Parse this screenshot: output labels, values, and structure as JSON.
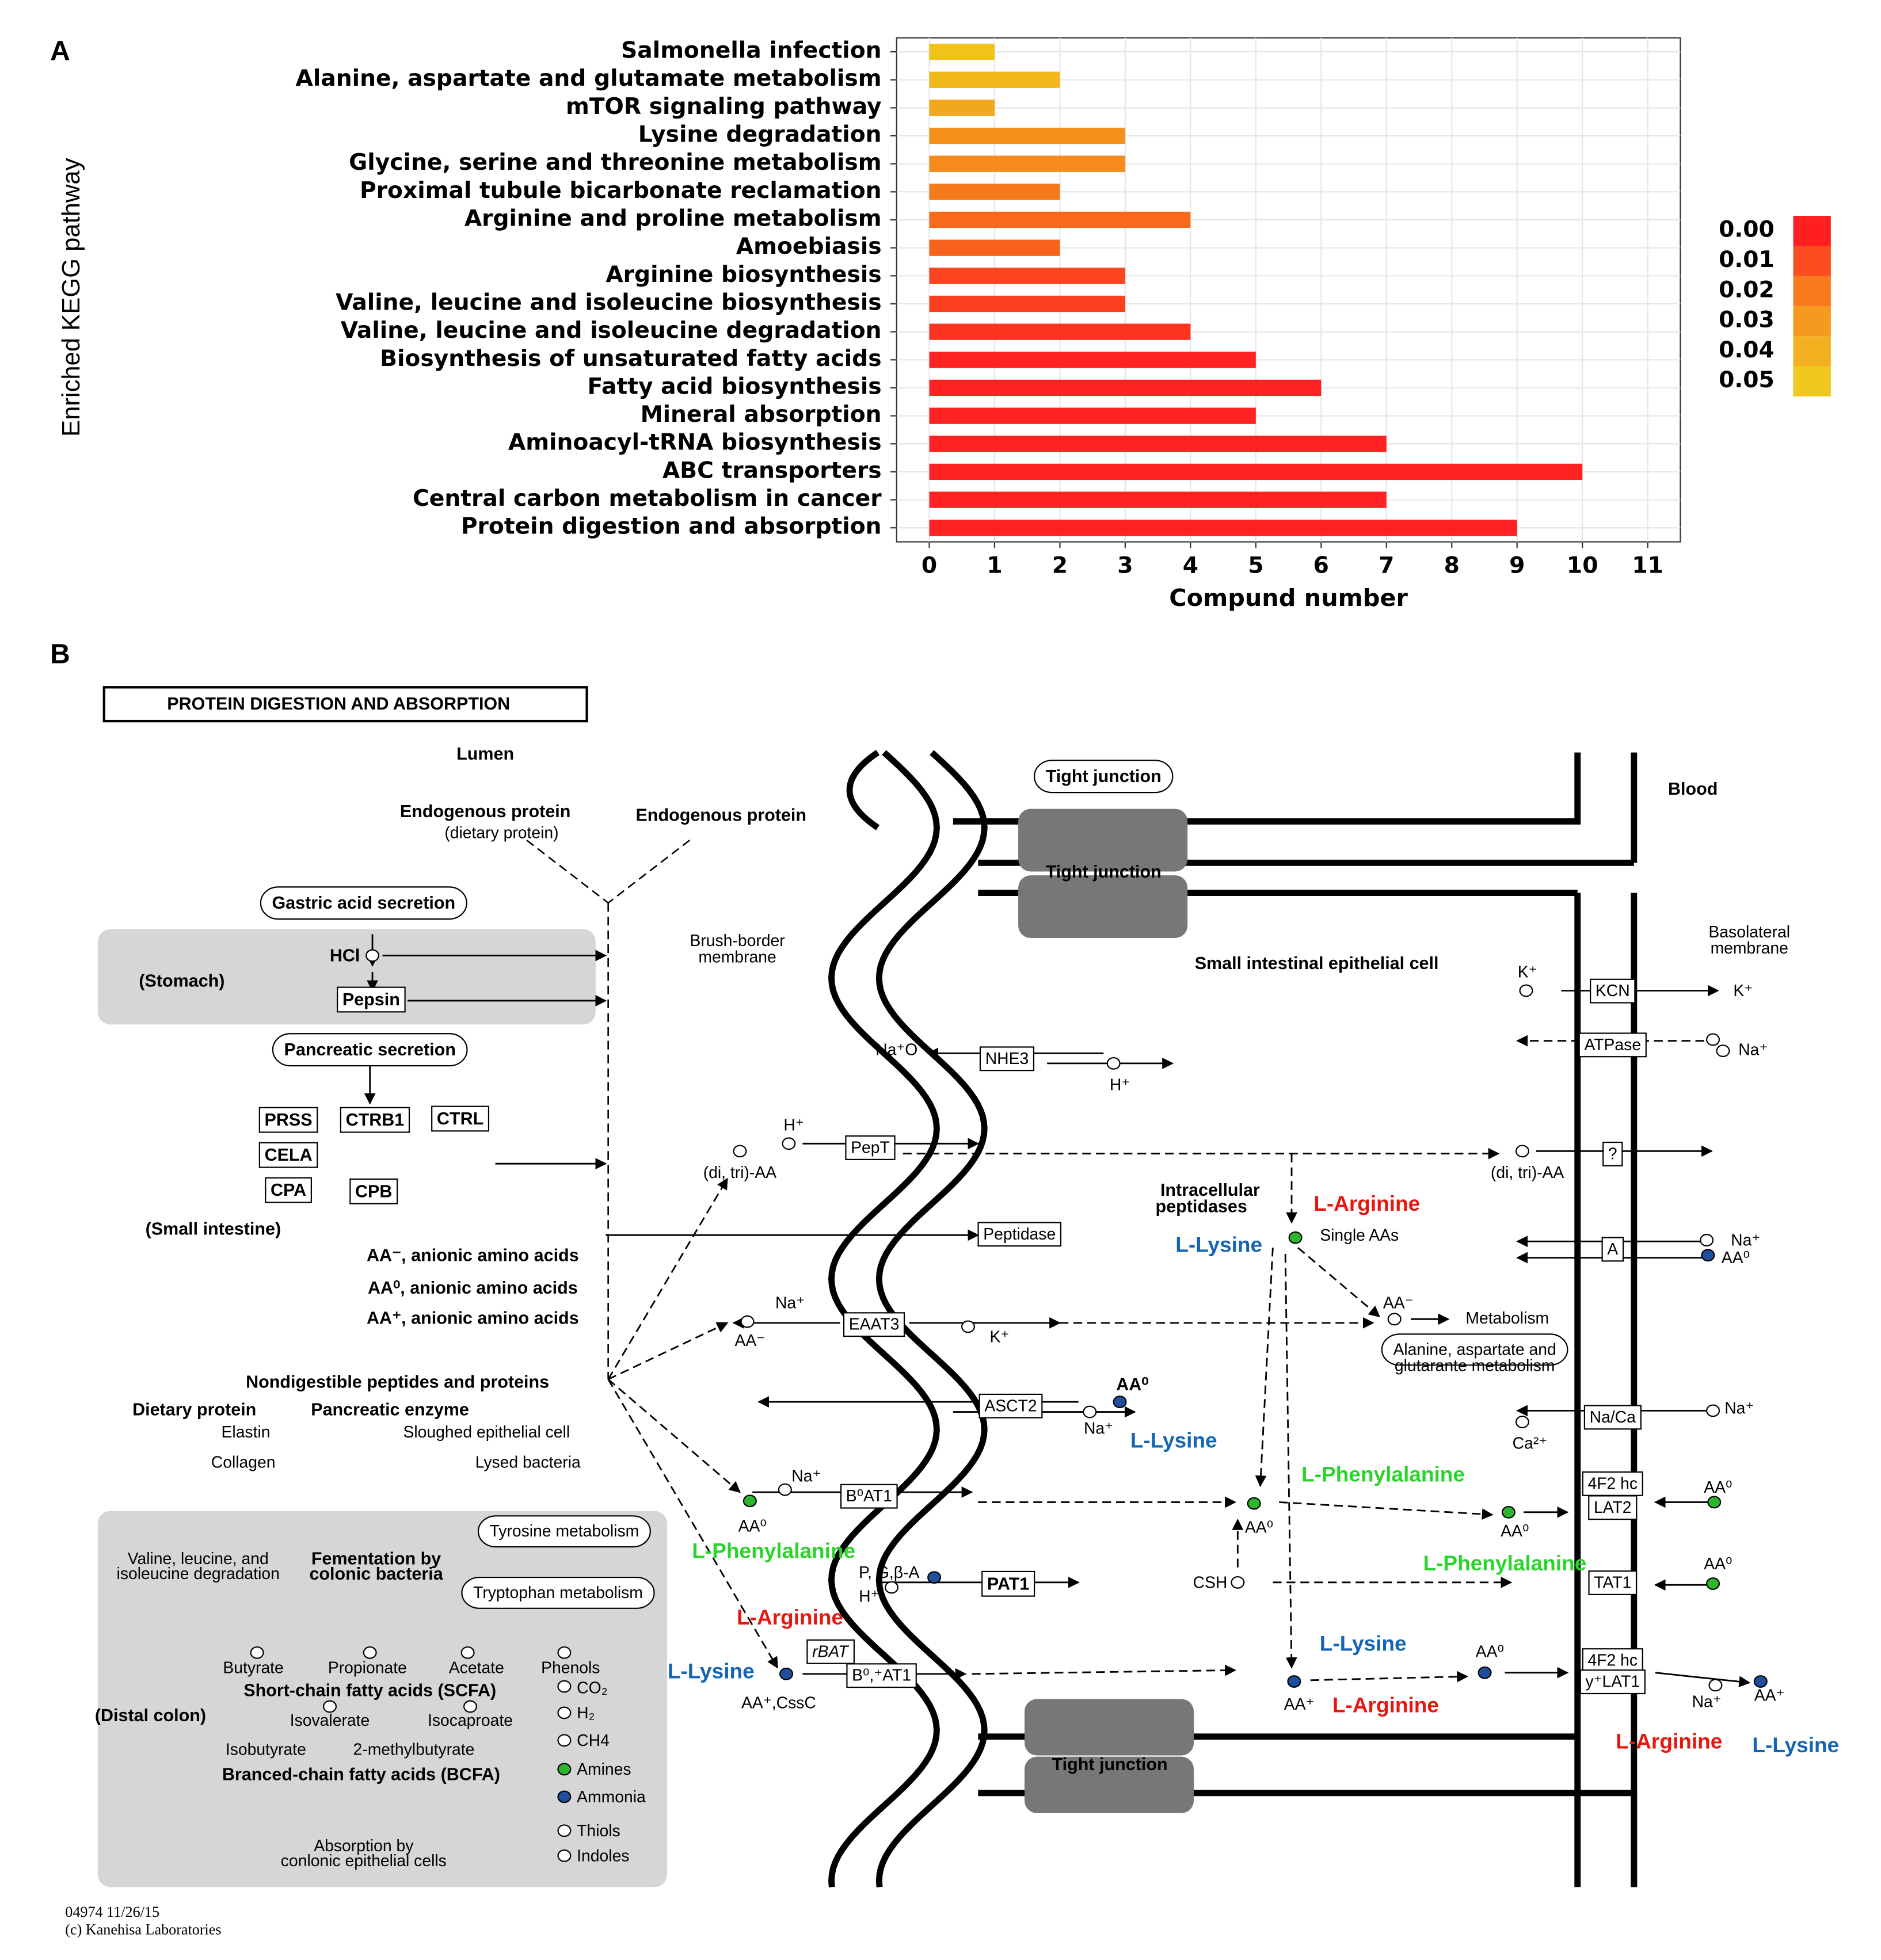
{
  "chart_data": {
    "type": "bar",
    "orientation": "horizontal",
    "panel_label": "A",
    "categories": [
      "Salmonella infection",
      "Alanine, aspartate and glutamate metabolism",
      "mTOR signaling pathway",
      "Lysine degradation",
      "Glycine, serine and threonine metabolism",
      "Proximal tubule bicarbonate reclamation",
      "Arginine and proline metabolism",
      "Amoebiasis",
      "Arginine biosynthesis",
      "Valine, leucine and isoleucine biosynthesis",
      "Valine, leucine and isoleucine degradation",
      "Biosynthesis of unsaturated fatty acids",
      "Fatty acid biosynthesis",
      "Mineral absorption",
      "Aminoacyl-tRNA biosynthesis",
      "ABC transporters",
      "Central carbon metabolism in cancer",
      "Protein digestion and absorption"
    ],
    "values": [
      1,
      2,
      1,
      3,
      3,
      2,
      4,
      2,
      3,
      3,
      4,
      5,
      6,
      5,
      7,
      10,
      7,
      9
    ],
    "colors": [
      "#f0c21c",
      "#f1b81c",
      "#f2a81c",
      "#f68f1a",
      "#f68a1a",
      "#f77a1a",
      "#f86a1a",
      "#f8621a",
      "#fb4420",
      "#fb4020",
      "#fc3420",
      "#ff2222",
      "#ff2222",
      "#ff2222",
      "#ff2222",
      "#ff2222",
      "#ff2222",
      "#ff2222"
    ],
    "xlabel": "Compund number",
    "ylabel": "Enriched KEGG pathway",
    "xlim": [
      -0.5,
      11.5
    ],
    "xticks": [
      0,
      1,
      2,
      3,
      4,
      5,
      6,
      7,
      8,
      9,
      10,
      11
    ],
    "grid": true,
    "legend": {
      "ticks": [
        {
          "value": 0,
          "label": "0.00"
        },
        {
          "value": 0.01,
          "label": "0.01"
        },
        {
          "value": 0.02,
          "label": "0.02"
        },
        {
          "value": 0.03,
          "label": "0.03"
        },
        {
          "value": 0.04,
          "label": "0.04"
        },
        {
          "value": 0.05,
          "label": "0.05"
        }
      ],
      "colors": [
        "#ff1f1f",
        "#fb4b1f",
        "#f87a1f",
        "#f59a1f",
        "#f2b020",
        "#f0c820"
      ]
    }
  },
  "diagram": {
    "panel_label": "B",
    "title": "PROTEIN DIGESTION AND ABSORPTION",
    "labels": [
      "Lumen",
      "Endogenous protein",
      "(dietary protein)",
      "Endogenous protein",
      "Gastric acid secretion",
      "(Stomach)",
      "HCl",
      "Pepsin",
      "Pancreatic secretion",
      "PRSS",
      "CTRB1",
      "CTRL",
      "CELA",
      "CPA",
      "CPB",
      "(Small intestine)",
      "AA⁻, anionic amino acids",
      "AA⁰, anionic amino acids",
      "AA⁺, anionic amino acids",
      "Nondigestible peptides and proteins",
      "Dietary protein",
      "Pancreatic enzyme",
      "Elastin",
      "Sloughed epithelial cell",
      "Collagen",
      "Lysed bacteria",
      "Tyrosine metabolism",
      "Valine, leucine, and",
      "isoleucine degradation",
      "Fementation by",
      "colonic bacteria",
      "Tryptophan metabolism",
      "Butyrate",
      "Propionate",
      "Acetate",
      "Phenols",
      "Short-chain fatty acids (SCFA)",
      "(Distal colon)",
      "Isovalerate",
      "Isocaproate",
      "Isobutyrate",
      "2-methylbutyrate",
      "Branced-chain fatty acids (BCFA)",
      "Absorption by",
      "conlonic epithelial cells",
      "CO₂",
      "H₂",
      "CH4",
      "Amines",
      "Ammonia",
      "Thiols",
      "Indoles",
      "Tight junction",
      "Tight junction",
      "Tight junction",
      "Blood",
      "Brush-border",
      "membrane",
      "Basolateral",
      "membrane",
      "Small intestinal epithelial cell",
      "K⁺",
      "KCN",
      "K⁺",
      "ATPase",
      "Na⁺",
      "Na⁺O",
      "NHE3",
      "H⁺",
      "H⁺",
      "PepT",
      "(di, tri)-AA",
      "(di, tri)-AA",
      "?",
      "Intracellular",
      "peptidases",
      "L-Arginine",
      "L-Lysine",
      "Single AAs",
      "Peptidase",
      "A",
      "Na⁺",
      "AA⁰",
      "Na⁺",
      "EAAT3",
      "AA⁻",
      "K⁺",
      "AA⁻",
      "Metabolism",
      "Alanine, aspartate and",
      "glutarante metabolism",
      "ASCT2",
      "AA⁰",
      "Na⁺",
      "L-Lysine",
      "Na/Ca",
      "Na⁺",
      "Ca²⁺",
      "L-Phenylalanine",
      "Na⁺",
      "B⁰AT1",
      "AA⁰",
      "AA⁰",
      "4F2 hc",
      "LAT2",
      "AA⁰",
      "AA⁰",
      "L-Phenylalanine",
      "P, G,β-A",
      "H⁺",
      "PAT1",
      "CSH",
      "L-Phenylalanine",
      "TAT1",
      "AA⁰",
      "L-Arginine",
      "rBAT",
      "L-Lysine",
      "B⁰,⁺AT1",
      "AA⁺,CssC",
      "L-Lysine",
      "AA⁰",
      "4F2 hc",
      "y⁺LAT1",
      "AA⁺",
      "L-Arginine",
      "Na⁺",
      "AA⁺",
      "L-Arginine",
      "L-Lysine",
      "04974 11/26/15",
      "(c) Kanehisa Laboratories"
    ]
  }
}
